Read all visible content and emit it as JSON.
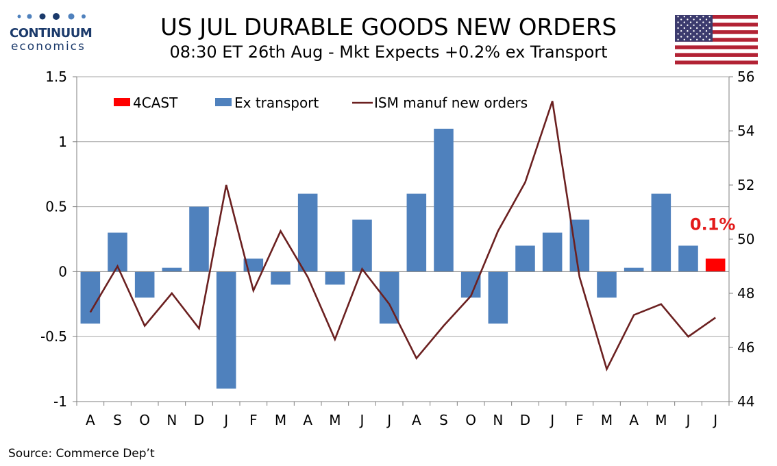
{
  "logo": {
    "name": "CONTINUUM",
    "sub": "economics"
  },
  "header": {
    "title": "US JUL DURABLE GOODS NEW ORDERS",
    "subtitle": "08:30 ET 26th Aug - Mkt Expects +0.2% ex Transport"
  },
  "footer": {
    "source": "Source: Commerce Dep’t"
  },
  "chart_data": {
    "type": "bar",
    "categories": [
      "A",
      "S",
      "O",
      "N",
      "D",
      "J",
      "F",
      "M",
      "A",
      "M",
      "J",
      "J",
      "A",
      "S",
      "O",
      "N",
      "D",
      "J",
      "F",
      "M",
      "A",
      "M",
      "J",
      "J"
    ],
    "series": [
      {
        "name": "Ex transport",
        "kind": "bar",
        "axis": "left",
        "color": "#4f81bd",
        "values": [
          -0.4,
          0.3,
          -0.2,
          0.03,
          0.5,
          -0.9,
          0.1,
          -0.1,
          0.6,
          -0.1,
          0.4,
          -0.4,
          0.6,
          1.1,
          -0.2,
          -0.4,
          0.2,
          0.3,
          0.4,
          -0.2,
          0.03,
          0.6,
          0.2,
          null
        ]
      },
      {
        "name": "4CAST",
        "kind": "bar",
        "axis": "left",
        "color": "#ff0000",
        "values": [
          null,
          null,
          null,
          null,
          null,
          null,
          null,
          null,
          null,
          null,
          null,
          null,
          null,
          null,
          null,
          null,
          null,
          null,
          null,
          null,
          null,
          null,
          null,
          0.1
        ]
      },
      {
        "name": "ISM manuf new orders",
        "kind": "line",
        "axis": "right",
        "color": "#6b2020",
        "values": [
          47.3,
          49.0,
          46.8,
          48.0,
          46.7,
          52.0,
          48.1,
          50.3,
          48.6,
          46.3,
          48.9,
          47.6,
          45.6,
          46.8,
          47.9,
          50.3,
          52.1,
          55.1,
          48.6,
          45.2,
          47.2,
          47.6,
          46.4,
          47.1
        ]
      }
    ],
    "y_left": {
      "min": -1,
      "max": 1.5,
      "ticks": [
        -1,
        -0.5,
        0,
        0.5,
        1,
        1.5
      ],
      "tick_labels": [
        "-1",
        "-0.5",
        "0",
        "0.5",
        "1",
        "1.5"
      ]
    },
    "y_right": {
      "min": 44,
      "max": 56,
      "ticks": [
        44,
        46,
        48,
        50,
        52,
        54,
        56
      ],
      "tick_labels": [
        "44",
        "46",
        "48",
        "50",
        "52",
        "54",
        "56"
      ]
    },
    "annotation": {
      "text": "0.1%",
      "category_index": 23,
      "color": "#e31b1b"
    },
    "grid": true,
    "legend": "top-left"
  }
}
